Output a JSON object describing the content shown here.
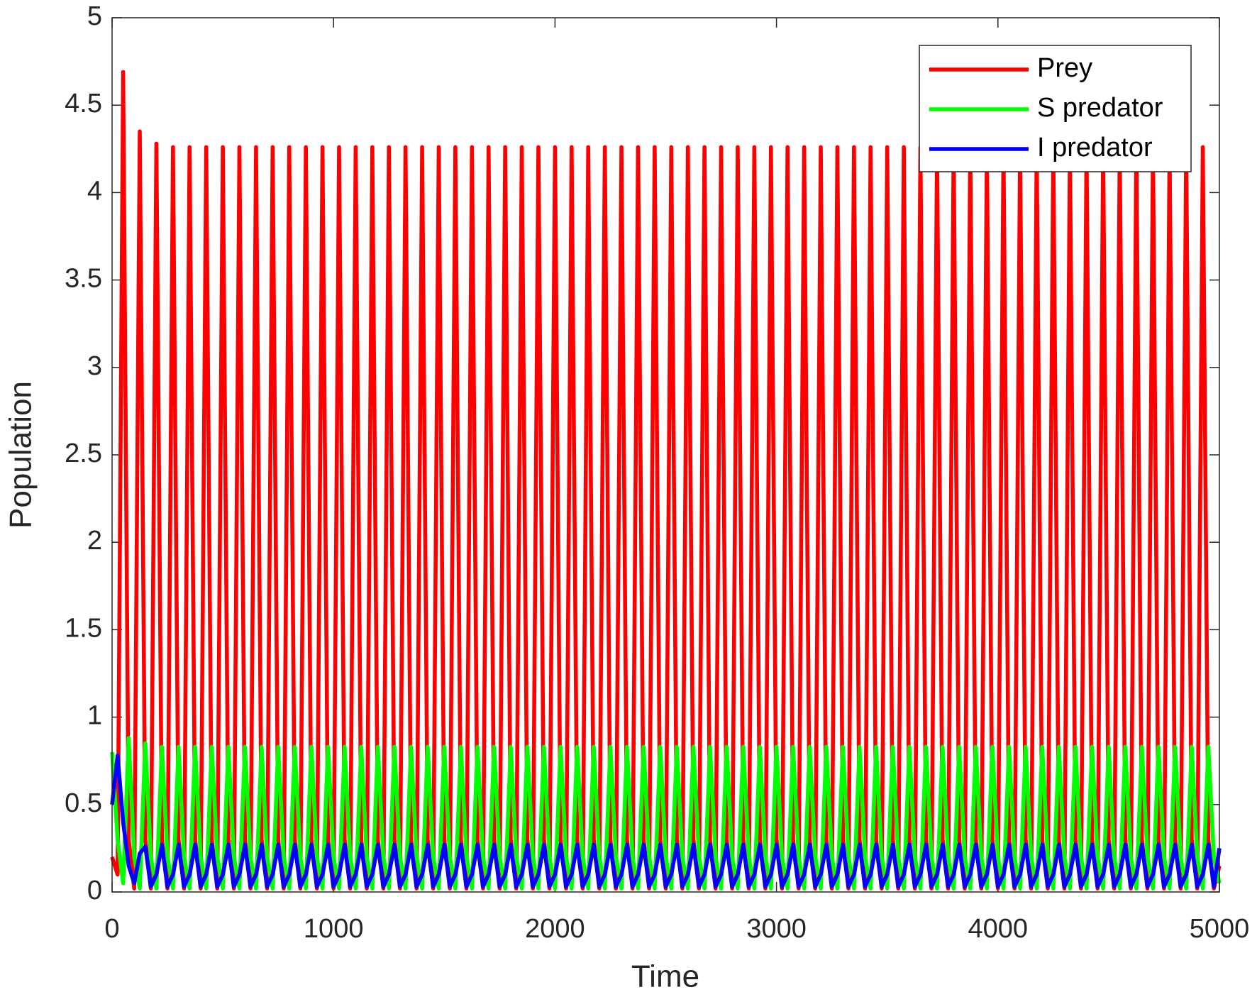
{
  "chart_data": {
    "type": "line",
    "xlabel": "Time",
    "ylabel": "Population",
    "xlim": [
      0,
      5000
    ],
    "xticks": [
      0,
      1000,
      2000,
      3000,
      4000,
      5000
    ],
    "ylim": [
      0,
      5
    ],
    "yticks": [
      0,
      0.5,
      1,
      1.5,
      2,
      2.5,
      3,
      3.5,
      4,
      4.5,
      5
    ],
    "grid": false,
    "legend": "upper right",
    "x": [
      0,
      25,
      50,
      75,
      100,
      125,
      150,
      175,
      200,
      225,
      250,
      275,
      300,
      325,
      350,
      375,
      400,
      425,
      450,
      475,
      500,
      525,
      550,
      575,
      600,
      625,
      650,
      675,
      700,
      725,
      750,
      775,
      800,
      825,
      850,
      875,
      900,
      925,
      950,
      975,
      1000,
      1025,
      1050,
      1075,
      1100,
      1125,
      1150,
      1175,
      1200,
      1225,
      1250,
      1275,
      1300,
      1325,
      1350,
      1375,
      1400,
      1425,
      1450,
      1475,
      1500,
      1525,
      1550,
      1575,
      1600,
      1625,
      1650,
      1675,
      1700,
      1725,
      1750,
      1775,
      1800,
      1825,
      1850,
      1875,
      1900,
      1925,
      1950,
      1975,
      2000,
      2025,
      2050,
      2075,
      2100,
      2125,
      2150,
      2175,
      2200,
      2225,
      2250,
      2275,
      2300,
      2325,
      2350,
      2375,
      2400,
      2425,
      2450,
      2475,
      2500,
      2525,
      2550,
      2575,
      2600,
      2625,
      2650,
      2675,
      2700,
      2725,
      2750,
      2775,
      2800,
      2825,
      2850,
      2875,
      2900,
      2925,
      2950,
      2975,
      3000,
      3025,
      3050,
      3075,
      3100,
      3125,
      3150,
      3175,
      3200,
      3225,
      3250,
      3275,
      3300,
      3325,
      3350,
      3375,
      3400,
      3425,
      3450,
      3475,
      3500,
      3525,
      3550,
      3575,
      3600,
      3625,
      3650,
      3675,
      3700,
      3725,
      3750,
      3775,
      3800,
      3825,
      3850,
      3875,
      3900,
      3925,
      3950,
      3975,
      4000,
      4025,
      4050,
      4075,
      4100,
      4125,
      4150,
      4175,
      4200,
      4225,
      4250,
      4275,
      4300,
      4325,
      4350,
      4375,
      4400,
      4425,
      4450,
      4475,
      4500,
      4525,
      4550,
      4575,
      4600,
      4625,
      4650,
      4675,
      4700,
      4725,
      4750,
      4775,
      4800,
      4825,
      4850,
      4875,
      4900,
      4925,
      4950,
      4975,
      5000
    ],
    "series": [
      {
        "name": "Prey",
        "color": "#ff0000",
        "values": [
          0.2,
          0.1,
          4.69,
          0.3,
          0.02,
          4.35,
          0.3,
          0.02,
          4.28,
          0.3,
          0.02,
          4.26,
          0.3,
          0.02,
          4.26,
          0.3,
          0.02,
          4.26,
          0.3,
          0.02,
          4.26,
          0.3,
          0.02,
          4.26,
          0.3,
          0.02,
          4.26,
          0.3,
          0.02,
          4.26,
          0.3,
          0.02,
          4.26,
          0.3,
          0.02,
          4.26,
          0.3,
          0.02,
          4.26,
          0.3,
          0.02,
          4.26,
          0.3,
          0.02,
          4.26,
          0.3,
          0.02,
          4.26,
          0.3,
          0.02,
          4.26,
          0.3,
          0.02,
          4.26,
          0.3,
          0.02,
          4.26,
          0.3,
          0.02,
          4.26,
          0.3,
          0.02,
          4.26,
          0.3,
          0.02,
          4.26,
          0.3,
          0.02,
          4.26,
          0.3,
          0.02,
          4.26,
          0.3,
          0.02,
          4.26,
          0.3,
          0.02,
          4.26,
          0.3,
          0.02,
          4.26,
          0.3,
          0.02,
          4.26,
          0.3,
          0.02,
          4.26,
          0.3,
          0.02,
          4.26,
          0.3,
          0.02,
          4.26,
          0.3,
          0.02,
          4.26,
          0.3,
          0.02,
          4.26,
          0.3,
          0.02,
          4.26,
          0.3,
          0.02,
          4.26,
          0.3,
          0.02,
          4.26,
          0.3,
          0.02,
          4.26,
          0.3,
          0.02,
          4.26,
          0.3,
          0.02,
          4.26,
          0.3,
          0.02,
          4.26,
          0.3,
          0.02,
          4.26,
          0.3,
          0.02,
          4.26,
          0.3,
          0.02,
          4.26,
          0.3,
          0.02,
          4.26,
          0.3,
          0.02,
          4.26,
          0.3,
          0.02,
          4.26,
          0.3,
          0.02,
          4.26,
          0.3,
          0.02,
          4.26,
          0.3,
          0.02,
          4.26,
          0.3,
          0.02,
          4.26,
          0.3,
          0.02,
          4.26,
          0.3,
          0.02,
          4.26,
          0.3,
          0.02,
          4.26,
          0.3,
          0.02,
          4.26,
          0.3,
          0.02,
          4.26,
          0.3,
          0.02,
          4.26,
          0.3,
          0.02,
          4.26,
          0.3,
          0.02,
          4.26,
          0.3,
          0.02,
          4.26,
          0.3,
          0.02,
          4.26,
          0.3,
          0.02,
          4.26,
          0.3,
          0.02,
          4.26,
          0.3,
          0.02,
          4.26,
          0.3,
          0.02,
          4.26,
          0.3,
          0.02,
          4.26,
          0.3,
          0.02,
          4.26,
          0.3,
          0.02,
          0.15
        ]
      },
      {
        "name": "S predator",
        "color": "#00ff00",
        "values": [
          0.8,
          0.3,
          0.05,
          0.88,
          0.2,
          0.02,
          0.85,
          0.2,
          0.02,
          0.83,
          0.2,
          0.02,
          0.83,
          0.2,
          0.02,
          0.83,
          0.2,
          0.02,
          0.83,
          0.2,
          0.02,
          0.83,
          0.2,
          0.02,
          0.83,
          0.2,
          0.02,
          0.83,
          0.2,
          0.02,
          0.83,
          0.2,
          0.02,
          0.83,
          0.2,
          0.02,
          0.83,
          0.2,
          0.02,
          0.83,
          0.2,
          0.02,
          0.83,
          0.2,
          0.02,
          0.83,
          0.2,
          0.02,
          0.83,
          0.2,
          0.02,
          0.83,
          0.2,
          0.02,
          0.83,
          0.2,
          0.02,
          0.83,
          0.2,
          0.02,
          0.83,
          0.2,
          0.02,
          0.83,
          0.2,
          0.02,
          0.83,
          0.2,
          0.02,
          0.83,
          0.2,
          0.02,
          0.83,
          0.2,
          0.02,
          0.83,
          0.2,
          0.02,
          0.83,
          0.2,
          0.02,
          0.83,
          0.2,
          0.02,
          0.83,
          0.2,
          0.02,
          0.83,
          0.2,
          0.02,
          0.83,
          0.2,
          0.02,
          0.83,
          0.2,
          0.02,
          0.83,
          0.2,
          0.02,
          0.83,
          0.2,
          0.02,
          0.83,
          0.2,
          0.02,
          0.83,
          0.2,
          0.02,
          0.83,
          0.2,
          0.02,
          0.83,
          0.2,
          0.02,
          0.83,
          0.2,
          0.02,
          0.83,
          0.2,
          0.02,
          0.83,
          0.2,
          0.02,
          0.83,
          0.2,
          0.02,
          0.83,
          0.2,
          0.02,
          0.83,
          0.2,
          0.02,
          0.83,
          0.2,
          0.02,
          0.83,
          0.2,
          0.02,
          0.83,
          0.2,
          0.02,
          0.83,
          0.2,
          0.02,
          0.83,
          0.2,
          0.02,
          0.83,
          0.2,
          0.02,
          0.83,
          0.2,
          0.02,
          0.83,
          0.2,
          0.02,
          0.83,
          0.2,
          0.02,
          0.83,
          0.2,
          0.02,
          0.83,
          0.2,
          0.02,
          0.83,
          0.2,
          0.02,
          0.83,
          0.2,
          0.02,
          0.83,
          0.2,
          0.02,
          0.83,
          0.2,
          0.02,
          0.83,
          0.2,
          0.02,
          0.83,
          0.2,
          0.02,
          0.83,
          0.2,
          0.02,
          0.83,
          0.2,
          0.02,
          0.83,
          0.2,
          0.02,
          0.83,
          0.2,
          0.02,
          0.83,
          0.2,
          0.02,
          0.83,
          0.2,
          0.05
        ]
      },
      {
        "name": "I predator",
        "color": "#0000ff",
        "values": [
          0.5,
          0.78,
          0.4,
          0.15,
          0.05,
          0.22,
          0.26,
          0.03,
          0.1,
          0.27,
          0.03,
          0.1,
          0.27,
          0.03,
          0.1,
          0.27,
          0.03,
          0.1,
          0.27,
          0.03,
          0.1,
          0.27,
          0.03,
          0.1,
          0.27,
          0.03,
          0.1,
          0.27,
          0.03,
          0.1,
          0.27,
          0.03,
          0.1,
          0.27,
          0.03,
          0.1,
          0.27,
          0.03,
          0.1,
          0.27,
          0.03,
          0.1,
          0.27,
          0.03,
          0.1,
          0.27,
          0.03,
          0.1,
          0.27,
          0.03,
          0.1,
          0.27,
          0.03,
          0.1,
          0.27,
          0.03,
          0.1,
          0.27,
          0.03,
          0.1,
          0.27,
          0.03,
          0.1,
          0.27,
          0.03,
          0.1,
          0.27,
          0.03,
          0.1,
          0.27,
          0.03,
          0.1,
          0.27,
          0.03,
          0.1,
          0.27,
          0.03,
          0.1,
          0.27,
          0.03,
          0.1,
          0.27,
          0.03,
          0.1,
          0.27,
          0.03,
          0.1,
          0.27,
          0.03,
          0.1,
          0.27,
          0.03,
          0.1,
          0.27,
          0.03,
          0.1,
          0.27,
          0.03,
          0.1,
          0.27,
          0.03,
          0.1,
          0.27,
          0.03,
          0.1,
          0.27,
          0.03,
          0.1,
          0.27,
          0.03,
          0.1,
          0.27,
          0.03,
          0.1,
          0.27,
          0.03,
          0.1,
          0.27,
          0.03,
          0.1,
          0.27,
          0.03,
          0.1,
          0.27,
          0.03,
          0.1,
          0.27,
          0.03,
          0.1,
          0.27,
          0.03,
          0.1,
          0.27,
          0.03,
          0.1,
          0.27,
          0.03,
          0.1,
          0.27,
          0.03,
          0.1,
          0.27,
          0.03,
          0.1,
          0.27,
          0.03,
          0.1,
          0.27,
          0.03,
          0.1,
          0.27,
          0.03,
          0.1,
          0.27,
          0.03,
          0.1,
          0.27,
          0.03,
          0.1,
          0.27,
          0.03,
          0.1,
          0.27,
          0.03,
          0.1,
          0.27,
          0.03,
          0.1,
          0.27,
          0.03,
          0.1,
          0.27,
          0.03,
          0.1,
          0.27,
          0.03,
          0.1,
          0.27,
          0.03,
          0.1,
          0.27,
          0.03,
          0.1,
          0.27,
          0.03,
          0.1,
          0.27,
          0.03,
          0.1,
          0.27,
          0.03,
          0.1,
          0.27,
          0.03,
          0.1,
          0.27,
          0.03,
          0.1,
          0.27,
          0.03,
          0.25
        ]
      }
    ]
  }
}
